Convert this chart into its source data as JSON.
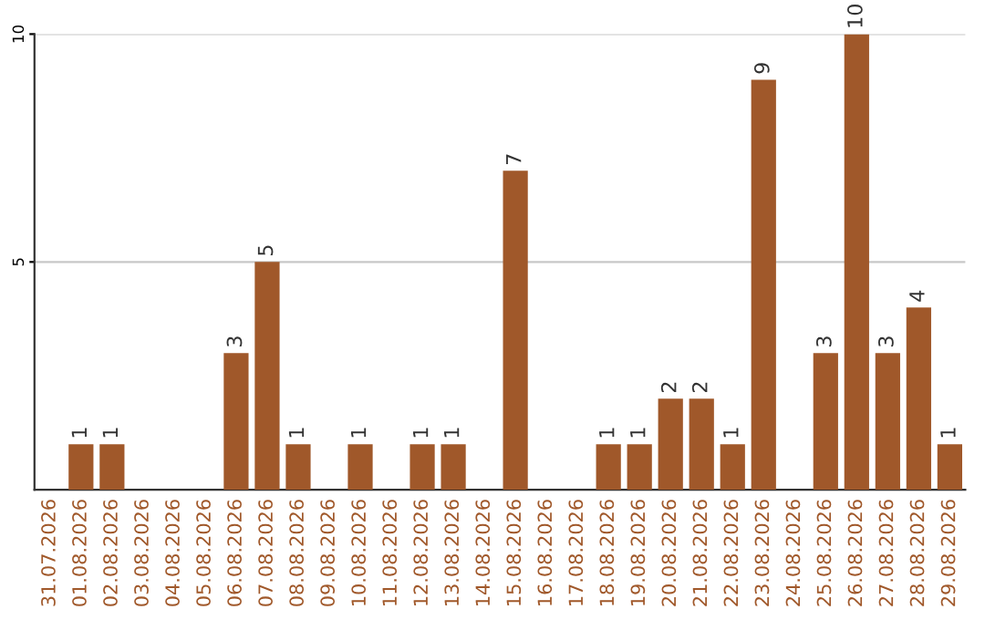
{
  "chart_data": {
    "type": "bar",
    "categories": [
      "31.07.2026",
      "01.08.2026",
      "02.08.2026",
      "03.08.2026",
      "04.08.2026",
      "05.08.2026",
      "06.08.2026",
      "07.08.2026",
      "08.08.2026",
      "09.08.2026",
      "10.08.2026",
      "11.08.2026",
      "12.08.2026",
      "13.08.2026",
      "14.08.2026",
      "15.08.2026",
      "16.08.2026",
      "17.08.2026",
      "18.08.2026",
      "19.08.2026",
      "20.08.2026",
      "21.08.2026",
      "22.08.2026",
      "23.08.2026",
      "24.08.2026",
      "25.08.2026",
      "26.08.2026",
      "27.08.2026",
      "28.08.2026",
      "29.08.2026"
    ],
    "values": [
      0,
      1,
      1,
      0,
      0,
      0,
      3,
      5,
      1,
      0,
      1,
      0,
      1,
      1,
      0,
      7,
      0,
      0,
      1,
      1,
      2,
      2,
      1,
      9,
      0,
      3,
      10,
      3,
      4,
      1
    ],
    "value_labels": [
      null,
      "1",
      "1",
      null,
      null,
      null,
      "3",
      "5",
      "1",
      null,
      "1",
      null,
      "1",
      "1",
      null,
      "7",
      null,
      null,
      "1",
      "1",
      "2",
      "2",
      "1",
      "9",
      null,
      "3",
      "10",
      "3",
      "4",
      "1"
    ],
    "color": "#a0582a",
    "ylim": [
      0,
      10
    ],
    "yticks": [
      5,
      10
    ],
    "grid": "y",
    "legend": false
  }
}
